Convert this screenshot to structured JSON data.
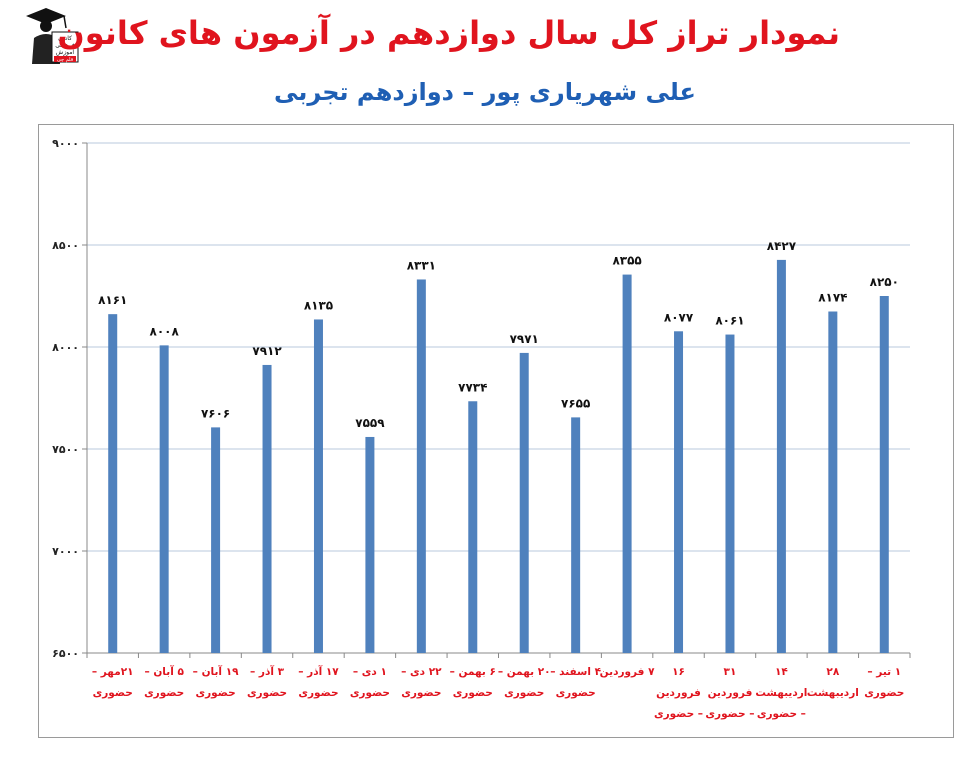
{
  "title": "نمودار تراز کل سال دوازدهم در آزمون های کانون",
  "subtitle": "علی شهریاری پور – دوازدهم تجربی",
  "logo": {
    "lines": [
      "کانون",
      "فرهنگی",
      "آموزش",
      "قلم چی"
    ]
  },
  "colors": {
    "bar": "#4f81bd",
    "title": "#e0141e",
    "subtitle": "#1f5fb4",
    "category_label": "#e0141e",
    "grid": "#b8c8dc"
  },
  "chart_data": {
    "type": "bar",
    "title": "نمودار تراز کل سال دوازدهم در آزمون های کانون",
    "subtitle": "علی شهریاری پور – دوازدهم تجربی",
    "xlabel": "",
    "ylabel": "",
    "ylim": [
      6500,
      9000
    ],
    "yticks": [
      6500,
      7000,
      7500,
      8000,
      8500,
      9000
    ],
    "ytick_labels": [
      "۶۵۰۰",
      "۷۰۰۰",
      "۷۵۰۰",
      "۸۰۰۰",
      "۸۵۰۰",
      "۹۰۰۰"
    ],
    "grid": true,
    "legend": "none",
    "categories": [
      [
        "۲۱مهر –",
        "حضوری"
      ],
      [
        "۵ آبان –",
        "حضوری"
      ],
      [
        "۱۹ آبان –",
        "حضوری"
      ],
      [
        "۳ آذر –",
        "حضوری"
      ],
      [
        "۱۷ آذر –",
        "حضوری"
      ],
      [
        "۱ دی –",
        "حضوری"
      ],
      [
        "۲۲ دی –",
        "حضوری"
      ],
      [
        "۶ بهمن –",
        "حضوری"
      ],
      [
        "۲۰ بهمن –",
        "حضوری"
      ],
      [
        "۴ اسفند –",
        "حضوری"
      ],
      [
        "۷ فروردین"
      ],
      [
        "۱۶",
        "فروردین",
        "– حضوری"
      ],
      [
        "۳۱",
        "فروردین",
        "– حضوری"
      ],
      [
        "۱۴",
        "اردیبهشت",
        "– حضوری"
      ],
      [
        "۲۸",
        "اردیبهشت"
      ],
      [
        "۱ تیر –",
        "حضوری"
      ]
    ],
    "values": [
      8161,
      8008,
      7606,
      7912,
      8135,
      7559,
      8331,
      7734,
      7971,
      7655,
      8355,
      8077,
      8061,
      8427,
      8174,
      8250
    ],
    "value_labels": [
      "۸۱۶۱",
      "۸۰۰۸",
      "۷۶۰۶",
      "۷۹۱۲",
      "۸۱۳۵",
      "۷۵۵۹",
      "۸۳۳۱",
      "۷۷۳۴",
      "۷۹۷۱",
      "۷۶۵۵",
      "۸۳۵۵",
      "۸۰۷۷",
      "۸۰۶۱",
      "۸۴۲۷",
      "۸۱۷۴",
      "۸۲۵۰"
    ]
  }
}
